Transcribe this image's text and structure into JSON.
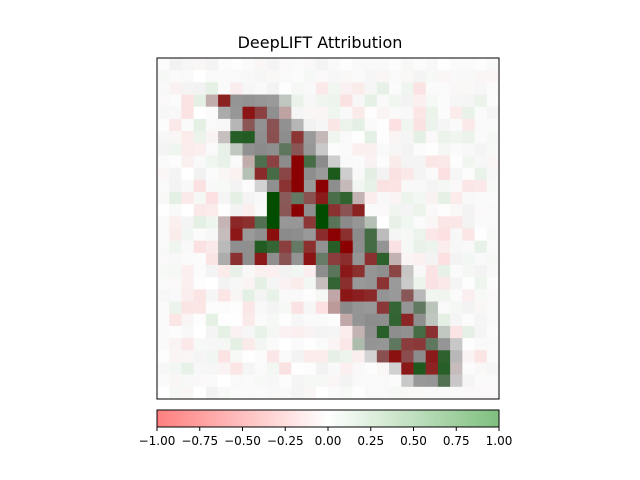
{
  "chart_data": {
    "type": "heatmap",
    "title": "DeepLIFT Attribution",
    "xlabel": "",
    "ylabel": "",
    "grid": false,
    "description_grid": "28x28 attribution map of a digit-like diagonal stroke overlaid on gray background",
    "colorbar": {
      "orientation": "horizontal",
      "position": "bottom",
      "range": [
        -1.0,
        1.0
      ],
      "ticks": [
        -1.0,
        -0.75,
        -0.5,
        -0.25,
        0.0,
        0.25,
        0.5,
        0.75,
        1.0
      ],
      "tick_labels": [
        "−1.00",
        "−0.75",
        "−0.50",
        "−0.25",
        "0.00",
        "0.25",
        "0.50",
        "0.75",
        "1.00"
      ],
      "colors": {
        "negative": "#ff7f7f",
        "zero": "#ffffff",
        "positive": "#7fbf7f"
      }
    },
    "axes": {
      "x_ticks": [],
      "y_ticks": []
    },
    "colors": {
      "stroke_gray": "#8a8a8a",
      "strong_negative": "#8b0000",
      "strong_positive": "#004d00"
    }
  }
}
